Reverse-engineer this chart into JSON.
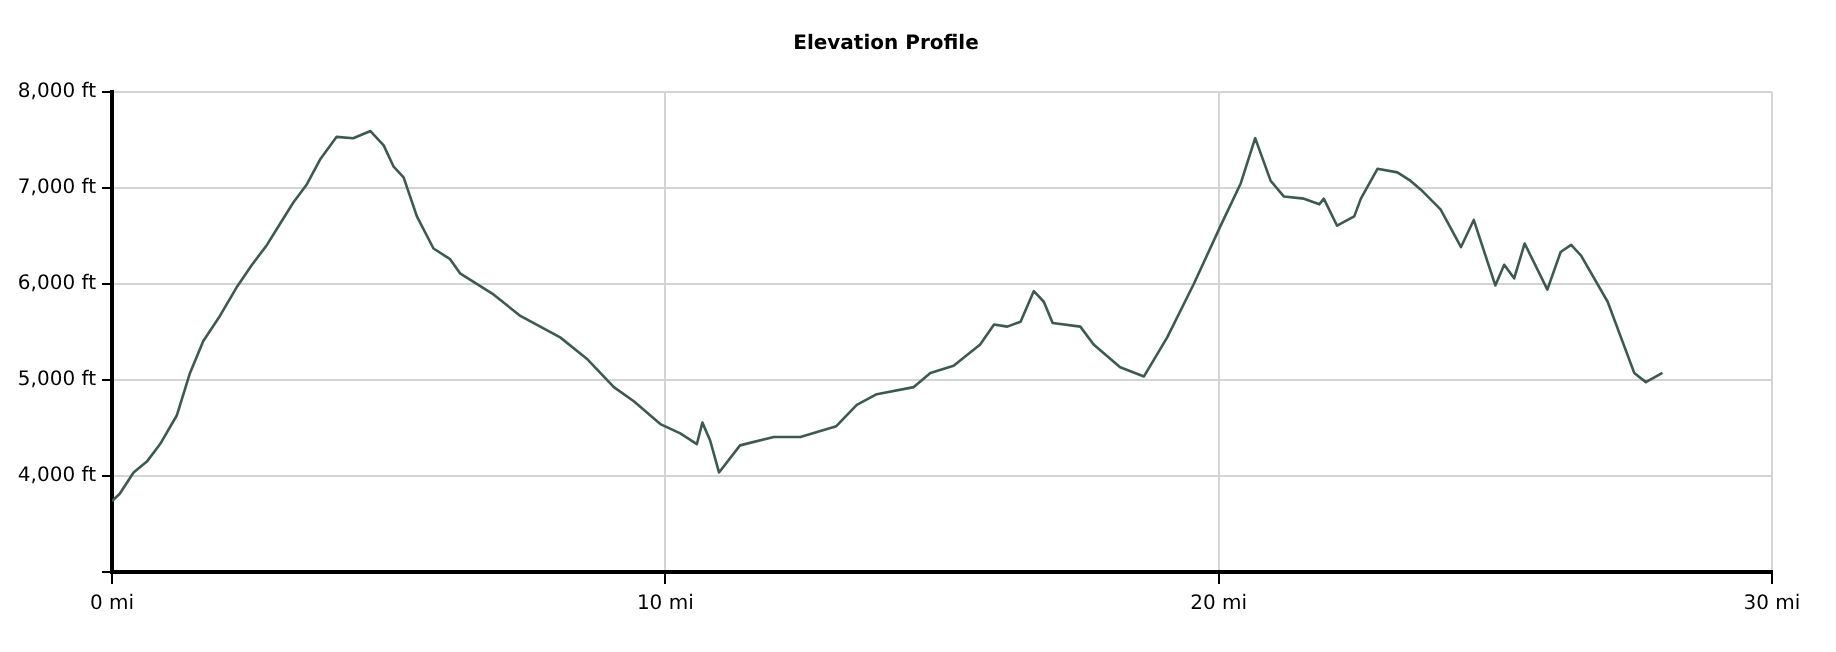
{
  "chart_data": {
    "type": "line",
    "title": "Elevation Profile",
    "x": [
      0,
      0.14,
      0.39,
      0.63,
      0.87,
      1.17,
      1.41,
      1.65,
      1.95,
      2.25,
      2.53,
      2.8,
      3.04,
      3.28,
      3.52,
      3.76,
      4.06,
      4.36,
      4.67,
      4.91,
      5.09,
      5.27,
      5.51,
      5.81,
      6.11,
      6.29,
      6.9,
      7.38,
      8.1,
      8.58,
      9.07,
      9.43,
      9.91,
      10.27,
      10.57,
      10.67,
      10.81,
      10.97,
      11.35,
      11.96,
      12.44,
      13.09,
      13.46,
      13.82,
      14.49,
      14.79,
      15.21,
      15.69,
      15.94,
      16.18,
      16.42,
      16.66,
      16.84,
      17,
      17.5,
      17.74,
      18.22,
      18.65,
      19.07,
      19.55,
      20.03,
      20.4,
      20.66,
      20.94,
      21.18,
      21.54,
      21.82,
      21.9,
      22.14,
      22.45,
      22.57,
      22.87,
      23.23,
      23.47,
      23.65,
      24.01,
      24.38,
      24.61,
      25,
      25.16,
      25.34,
      25.53,
      25.94,
      26.18,
      26.37,
      26.55,
      27.03,
      27.51,
      27.72,
      28.02
    ],
    "series": [
      {
        "color": "#3c5a50",
        "values": [
          3740,
          3815,
          4037,
          4150,
          4333,
          4630,
          5074,
          5407,
          5667,
          5963,
          6200,
          6407,
          6630,
          6852,
          7037,
          7296,
          7533,
          7519,
          7593,
          7444,
          7222,
          7111,
          6704,
          6370,
          6259,
          6111,
          5889,
          5667,
          5444,
          5222,
          4926,
          4778,
          4541,
          4444,
          4333,
          4556,
          4370,
          4037,
          4319,
          4407,
          4407,
          4519,
          4741,
          4852,
          4926,
          5074,
          5148,
          5370,
          5578,
          5556,
          5607,
          5926,
          5815,
          5593,
          5556,
          5370,
          5133,
          5037,
          5444,
          6000,
          6600,
          7050,
          7519,
          7074,
          6911,
          6889,
          6830,
          6889,
          6607,
          6704,
          6889,
          7200,
          7163,
          7074,
          6985,
          6778,
          6385,
          6667,
          5985,
          6200,
          6059,
          6422,
          5941,
          6333,
          6407,
          6296,
          5815,
          5074,
          4978,
          5074
        ]
      }
    ],
    "xlim": [
      0,
      30
    ],
    "xticks": [
      {
        "value": 0,
        "label": "0 mi"
      },
      {
        "value": 10,
        "label": "10 mi"
      },
      {
        "value": 20,
        "label": "20 mi"
      },
      {
        "value": 30,
        "label": "30 mi"
      }
    ],
    "ylim": [
      3000,
      8000
    ],
    "yticks": [
      {
        "value": 3000,
        "label": null
      },
      {
        "value": 4000,
        "label": "4,000 ft"
      },
      {
        "value": 5000,
        "label": "5,000 ft"
      },
      {
        "value": 6000,
        "label": "6,000 ft"
      },
      {
        "value": 7000,
        "label": "7,000 ft"
      },
      {
        "value": 8000,
        "label": "8,000 ft"
      }
    ],
    "grid": true,
    "legend": false
  }
}
